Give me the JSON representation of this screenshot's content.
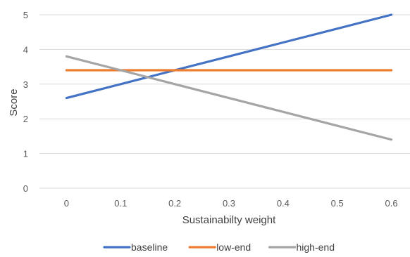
{
  "chart_data": {
    "type": "line",
    "title": "",
    "xlabel": "Sustainabilty weight",
    "ylabel": "Score",
    "x": [
      0,
      0.1,
      0.2,
      0.3,
      0.4,
      0.5,
      0.6
    ],
    "x_tick_labels": [
      "0",
      "0.1",
      "0.2",
      "0.3",
      "0.4",
      "0.5",
      "0.6"
    ],
    "y_tick_labels": [
      "0",
      "1",
      "2",
      "3",
      "4",
      "5"
    ],
    "ylim": [
      0,
      5
    ],
    "xlim": [
      -0.05,
      0.65
    ],
    "grid": "horizontal",
    "legend_position": "bottom",
    "series": [
      {
        "name": "baseline",
        "color": "#4472C4",
        "values": [
          2.6,
          3.0,
          3.4,
          3.8,
          4.2,
          4.6,
          5.0
        ]
      },
      {
        "name": "low-end",
        "color": "#ED7D31",
        "values": [
          3.4,
          3.4,
          3.4,
          3.4,
          3.4,
          3.4,
          3.4
        ]
      },
      {
        "name": "high-end",
        "color": "#A5A5A5",
        "values": [
          3.8,
          3.4,
          3.0,
          2.6,
          2.2,
          1.8,
          1.4
        ]
      }
    ]
  }
}
